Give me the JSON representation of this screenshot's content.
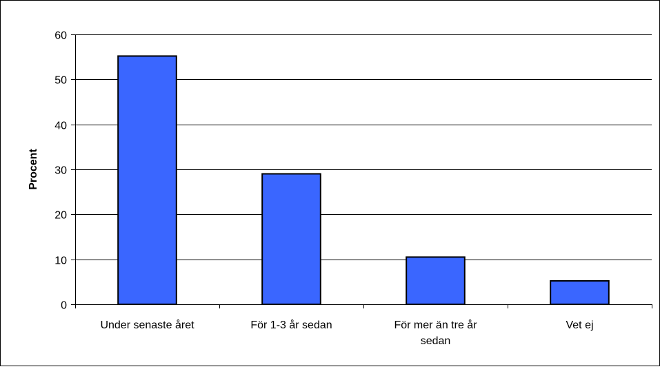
{
  "chart_data": {
    "type": "bar",
    "ylabel": "Procent",
    "categories": [
      [
        "Under senaste året"
      ],
      [
        "För 1-3 år sedan"
      ],
      [
        "För mer än tre år",
        "sedan"
      ],
      [
        "Vet ej"
      ]
    ],
    "values": [
      55.2,
      29.0,
      10.5,
      5.2
    ],
    "ylim": [
      0,
      60
    ],
    "yticks": [
      0,
      10,
      20,
      30,
      40,
      50,
      60
    ],
    "grid": true,
    "legend": "none",
    "colors": {
      "bar_fill": "#3a66ff",
      "bar_stroke": "#000000",
      "grid": "#000000"
    }
  }
}
